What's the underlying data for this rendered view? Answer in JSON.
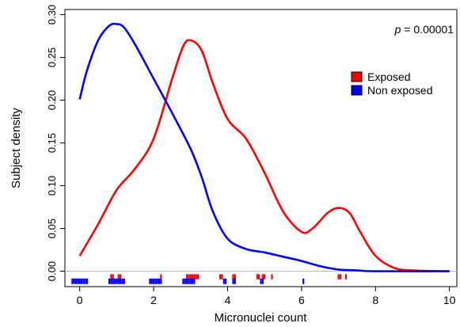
{
  "chart_data": {
    "type": "line",
    "title": "",
    "xlabel": "Micronuclei count",
    "ylabel": "Subject density",
    "xlim": [
      -0.4,
      10.2
    ],
    "ylim": [
      -0.018,
      0.306
    ],
    "x_ticks": [
      "0",
      "2",
      "4",
      "6",
      "8",
      "10"
    ],
    "y_ticks": [
      "0.00",
      "0.05",
      "0.10",
      "0.15",
      "0.20",
      "0.25",
      "0.30"
    ],
    "grid": false,
    "legend": {
      "placement": "top-right"
    },
    "annotation": {
      "label": "p",
      "text": " = 0.00001"
    },
    "series": [
      {
        "name": "Exposed",
        "color": "#ff0000",
        "points": [
          [
            0,
            0.018
          ],
          [
            0.5,
            0.055
          ],
          [
            1.0,
            0.095
          ],
          [
            1.5,
            0.12
          ],
          [
            2.0,
            0.155
          ],
          [
            2.5,
            0.225
          ],
          [
            2.8,
            0.263
          ],
          [
            3.0,
            0.27
          ],
          [
            3.3,
            0.258
          ],
          [
            3.6,
            0.22
          ],
          [
            4.0,
            0.178
          ],
          [
            4.5,
            0.155
          ],
          [
            5.0,
            0.115
          ],
          [
            5.5,
            0.07
          ],
          [
            6.0,
            0.046
          ],
          [
            6.3,
            0.05
          ],
          [
            6.7,
            0.068
          ],
          [
            7.0,
            0.074
          ],
          [
            7.3,
            0.068
          ],
          [
            7.6,
            0.045
          ],
          [
            8.0,
            0.018
          ],
          [
            8.5,
            0.004
          ],
          [
            9.0,
            0.001
          ],
          [
            10.0,
            0.0
          ]
        ],
        "rug": [
          0.85,
          0.9,
          1.05,
          1.1,
          2.2,
          2.9,
          2.95,
          3.0,
          3.05,
          3.1,
          3.15,
          3.2,
          3.8,
          3.85,
          4.15,
          4.2,
          4.8,
          4.85,
          4.95,
          5.0,
          5.2,
          7.0,
          7.05,
          7.2
        ]
      },
      {
        "name": "Non exposed",
        "color": "#0000ff",
        "points": [
          [
            0,
            0.201
          ],
          [
            0.2,
            0.235
          ],
          [
            0.5,
            0.27
          ],
          [
            0.8,
            0.287
          ],
          [
            1.0,
            0.289
          ],
          [
            1.2,
            0.285
          ],
          [
            1.5,
            0.265
          ],
          [
            2.0,
            0.225
          ],
          [
            2.5,
            0.185
          ],
          [
            3.0,
            0.143
          ],
          [
            3.3,
            0.11
          ],
          [
            3.6,
            0.07
          ],
          [
            4.0,
            0.038
          ],
          [
            4.5,
            0.026
          ],
          [
            5.0,
            0.022
          ],
          [
            5.5,
            0.017
          ],
          [
            6.0,
            0.012
          ],
          [
            6.5,
            0.006
          ],
          [
            7.0,
            0.002
          ],
          [
            7.5,
            0.001
          ],
          [
            8.0,
            0.0
          ],
          [
            10.0,
            0.0
          ]
        ],
        "rug": [
          -0.2,
          -0.15,
          -0.1,
          -0.05,
          0.0,
          0.05,
          0.1,
          0.15,
          0.2,
          0.8,
          0.85,
          0.9,
          0.95,
          1.0,
          1.05,
          1.1,
          1.15,
          1.2,
          1.9,
          1.95,
          2.0,
          2.05,
          2.1,
          2.15,
          2.2,
          2.8,
          2.85,
          2.9,
          2.95,
          3.0,
          3.05,
          3.1,
          3.9,
          3.95,
          4.15,
          4.2,
          4.9,
          4.95,
          6.05
        ]
      }
    ]
  }
}
